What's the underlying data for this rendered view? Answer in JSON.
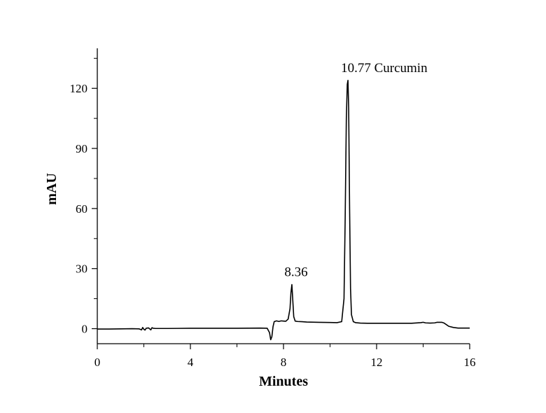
{
  "chart_data": {
    "type": "line",
    "title": "",
    "xlabel": "Minutes",
    "ylabel": "mAU",
    "xlim": [
      0,
      16
    ],
    "ylim": [
      -7.5,
      140
    ],
    "x_ticks": [
      0,
      4,
      8,
      12,
      16
    ],
    "y_ticks": [
      0,
      30,
      60,
      90,
      120
    ],
    "grid": false,
    "legend": "none",
    "line_color": "#000000",
    "series": [
      {
        "x": [
          0,
          0.5,
          1,
          1.5,
          1.8,
          1.9,
          1.95,
          2.0,
          2.05,
          2.1,
          2.2,
          2.3,
          2.35,
          2.4,
          2.5,
          3,
          4,
          5,
          6,
          7,
          7.3,
          7.4,
          7.45,
          7.5,
          7.55,
          7.6,
          7.7,
          7.8,
          7.9,
          8.0,
          8.1,
          8.2,
          8.28,
          8.32,
          8.36,
          8.4,
          8.44,
          8.5,
          8.6,
          8.8,
          9,
          9.5,
          10,
          10.3,
          10.5,
          10.6,
          10.65,
          10.7,
          10.74,
          10.77,
          10.8,
          10.84,
          10.88,
          10.92,
          11.0,
          11.1,
          11.3,
          11.6,
          12,
          12.5,
          13,
          13.5,
          13.9,
          14.0,
          14.1,
          14.3,
          14.5,
          14.6,
          14.8,
          14.9,
          15.0,
          15.1,
          15.3,
          15.5,
          16
        ],
        "y": [
          -0.2,
          -0.2,
          -0.1,
          0.0,
          -0.1,
          -0.6,
          0.6,
          -0.3,
          -0.7,
          0.2,
          0.4,
          -0.6,
          0.5,
          0.2,
          0.1,
          0.1,
          0.2,
          0.2,
          0.2,
          0.3,
          0.2,
          -2.0,
          -5.5,
          -4.0,
          1.0,
          3.5,
          3.9,
          3.6,
          3.9,
          3.8,
          3.7,
          4.8,
          10.0,
          18.0,
          22.0,
          14.0,
          6.0,
          3.8,
          3.6,
          3.5,
          3.3,
          3.2,
          3.1,
          3.0,
          3.5,
          15.0,
          55.0,
          105.0,
          122.0,
          124.0,
          110.0,
          60.0,
          20.0,
          7.0,
          3.5,
          3.0,
          2.8,
          2.7,
          2.7,
          2.7,
          2.7,
          2.7,
          3.0,
          3.2,
          2.9,
          2.8,
          2.9,
          3.2,
          3.2,
          2.8,
          2.0,
          1.2,
          0.6,
          0.3,
          0.3
        ]
      }
    ],
    "annotations": [
      {
        "x": 8.36,
        "y": 22,
        "text": "8.36"
      },
      {
        "x": 10.77,
        "y": 124,
        "text": "10.77 Curcumin"
      }
    ]
  }
}
